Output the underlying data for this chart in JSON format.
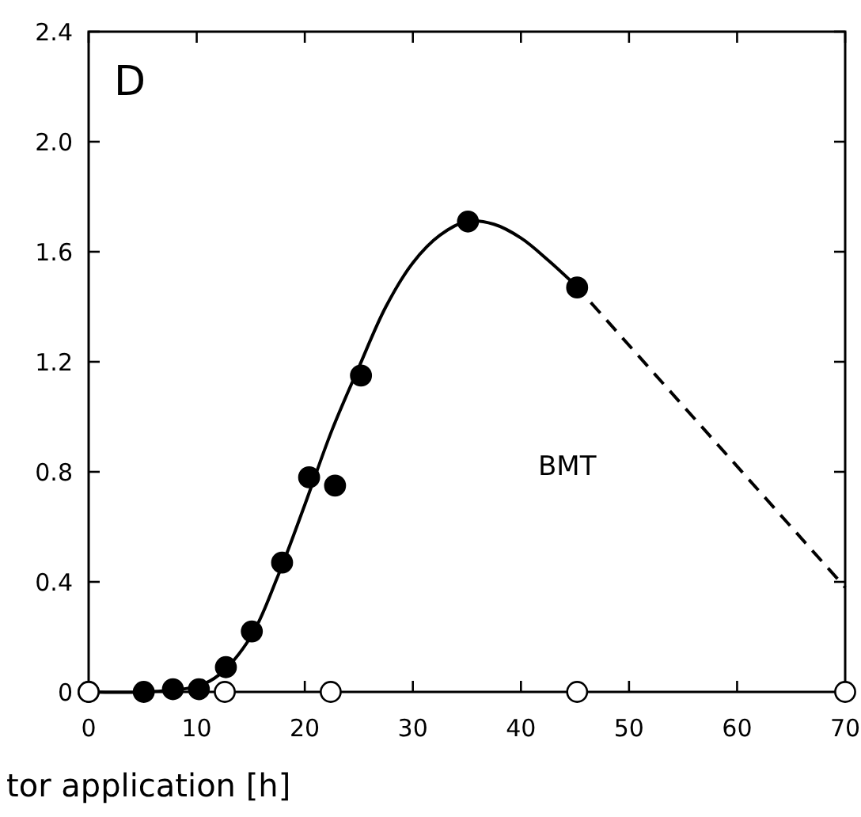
{
  "chart_data": {
    "type": "scatter",
    "xlabel": "tor application [h]",
    "xlim": [
      0,
      70
    ],
    "xticks": [
      0,
      10,
      20,
      30,
      40,
      50,
      60,
      70
    ],
    "ylim": [
      0,
      2.4
    ],
    "yticks": [
      0,
      0.4,
      0.8,
      1.2,
      1.6,
      {
        "value": 2,
        "label": "2.0"
      },
      2.4
    ],
    "grid": false,
    "annotations": [
      "D",
      "BMT"
    ],
    "series": [
      {
        "type": "line",
        "color": "#000000",
        "marker": "none",
        "line_style": "solid",
        "x": [
          0,
          5,
          10,
          12,
          15,
          17.5,
          20,
          22.5,
          25,
          27.5,
          30,
          32.5,
          35,
          37.5,
          40,
          42.5,
          45
        ],
        "values": [
          0,
          0,
          0.02,
          0.06,
          0.2,
          0.42,
          0.68,
          0.95,
          1.18,
          1.4,
          1.56,
          1.66,
          1.71,
          1.7,
          1.65,
          1.57,
          1.48
        ]
      },
      {
        "type": "line",
        "color": "#000000",
        "marker": "none",
        "line_style": "dashed",
        "x": [
          45,
          70
        ],
        "values": [
          1.48,
          0.38
        ]
      },
      {
        "color": "#000000",
        "marker": "circle",
        "x": [
          0,
          5.1,
          7.8,
          10.2,
          12.7,
          15.1,
          17.9,
          20.4,
          22.8,
          25.2,
          35.1,
          45.2
        ],
        "values": [
          0,
          0,
          0.01,
          0.01,
          0.09,
          0.22,
          0.47,
          0.78,
          0.75,
          1.15,
          1.71,
          1.47
        ]
      },
      {
        "color": "#ffffff",
        "marker": "circle",
        "x": [
          0,
          12.6,
          22.4,
          45.2,
          70
        ],
        "values": [
          0,
          0,
          0,
          0,
          0
        ]
      }
    ]
  }
}
